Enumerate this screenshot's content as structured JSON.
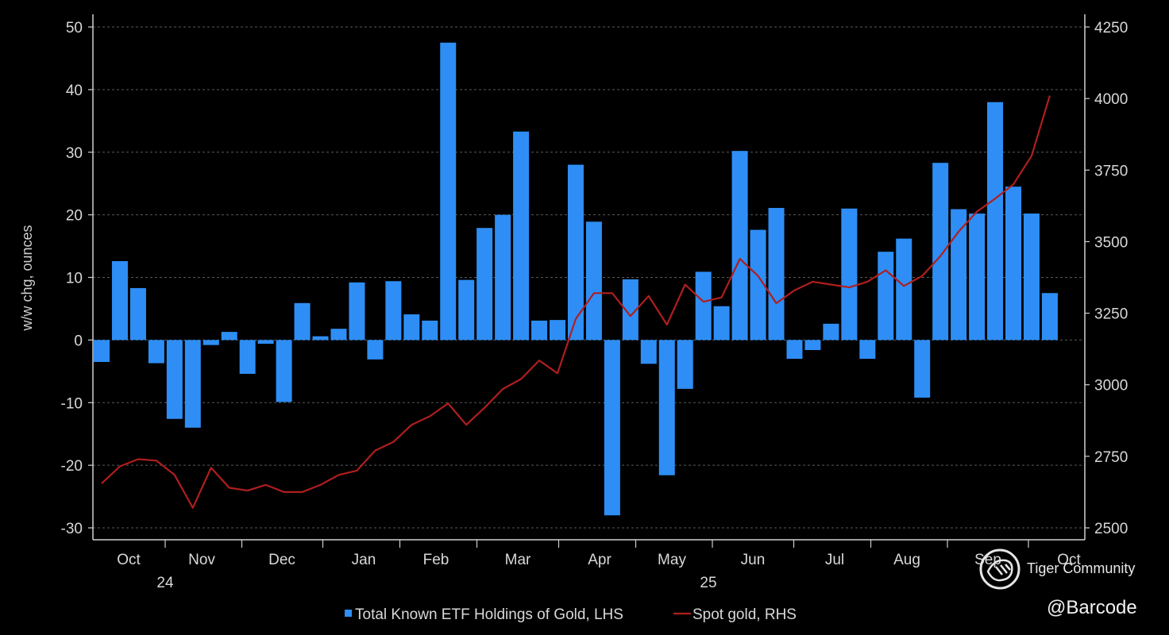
{
  "chart_data": {
    "type": "bar+line",
    "ylabel_left": "w/w chg, ounces",
    "left_axis": {
      "min": -30,
      "max": 50,
      "ticks": [
        50,
        40,
        30,
        20,
        10,
        0,
        -10,
        -20,
        -30
      ]
    },
    "right_axis": {
      "min": 2500,
      "max": 4250,
      "ticks": [
        4250,
        4000,
        3750,
        3500,
        3250,
        3000,
        2750,
        2500
      ]
    },
    "month_labels": [
      "Oct",
      "Nov",
      "Dec",
      "Jan",
      "Feb",
      "Mar",
      "Apr",
      "May",
      "Jun",
      "Jul",
      "Aug",
      "Sep",
      "Oct"
    ],
    "year_labels": [
      "24",
      "25"
    ],
    "grid": true,
    "series": [
      {
        "name": "Total Known ETF Holdings of Gold, LHS",
        "type": "bar",
        "axis": "left",
        "color": "#2e8ef5",
        "values": [
          -3.5,
          12.6,
          8.3,
          -3.7,
          -12.6,
          -14,
          -0.8,
          1.3,
          -5.4,
          -0.6,
          -9.9,
          5.9,
          0.6,
          1.8,
          9.2,
          -3.1,
          9.4,
          4.1,
          3.1,
          47.5,
          9.6,
          17.9,
          20,
          33.3,
          3.1,
          3.2,
          28,
          18.9,
          -28,
          9.7,
          -3.8,
          -21.6,
          -7.8,
          10.9,
          5.4,
          30.2,
          17.6,
          21.1,
          -3,
          -1.6,
          2.6,
          21,
          -3,
          14.1,
          16.2,
          -9.2,
          28.3,
          20.9,
          20.2,
          38,
          24.5,
          20.2,
          7.5
        ]
      },
      {
        "name": "Spot gold, RHS",
        "type": "line",
        "axis": "right",
        "color": "#b01e1e",
        "values": [
          2655,
          2715,
          2740,
          2735,
          2685,
          2570,
          2710,
          2640,
          2630,
          2650,
          2625,
          2625,
          2650,
          2685,
          2700,
          2770,
          2800,
          2860,
          2890,
          2935,
          2860,
          2920,
          2985,
          3020,
          3085,
          3040,
          3230,
          3320,
          3320,
          3240,
          3310,
          3210,
          3350,
          3290,
          3305,
          3440,
          3380,
          3285,
          3330,
          3360,
          3350,
          3340,
          3360,
          3400,
          3345,
          3380,
          3450,
          3535,
          3605,
          3650,
          3700,
          3800,
          4010
        ]
      }
    ]
  },
  "watermark": {
    "text": "Tiger Community",
    "icon": "tiger-logo-icon"
  },
  "credit": "@Barcode"
}
